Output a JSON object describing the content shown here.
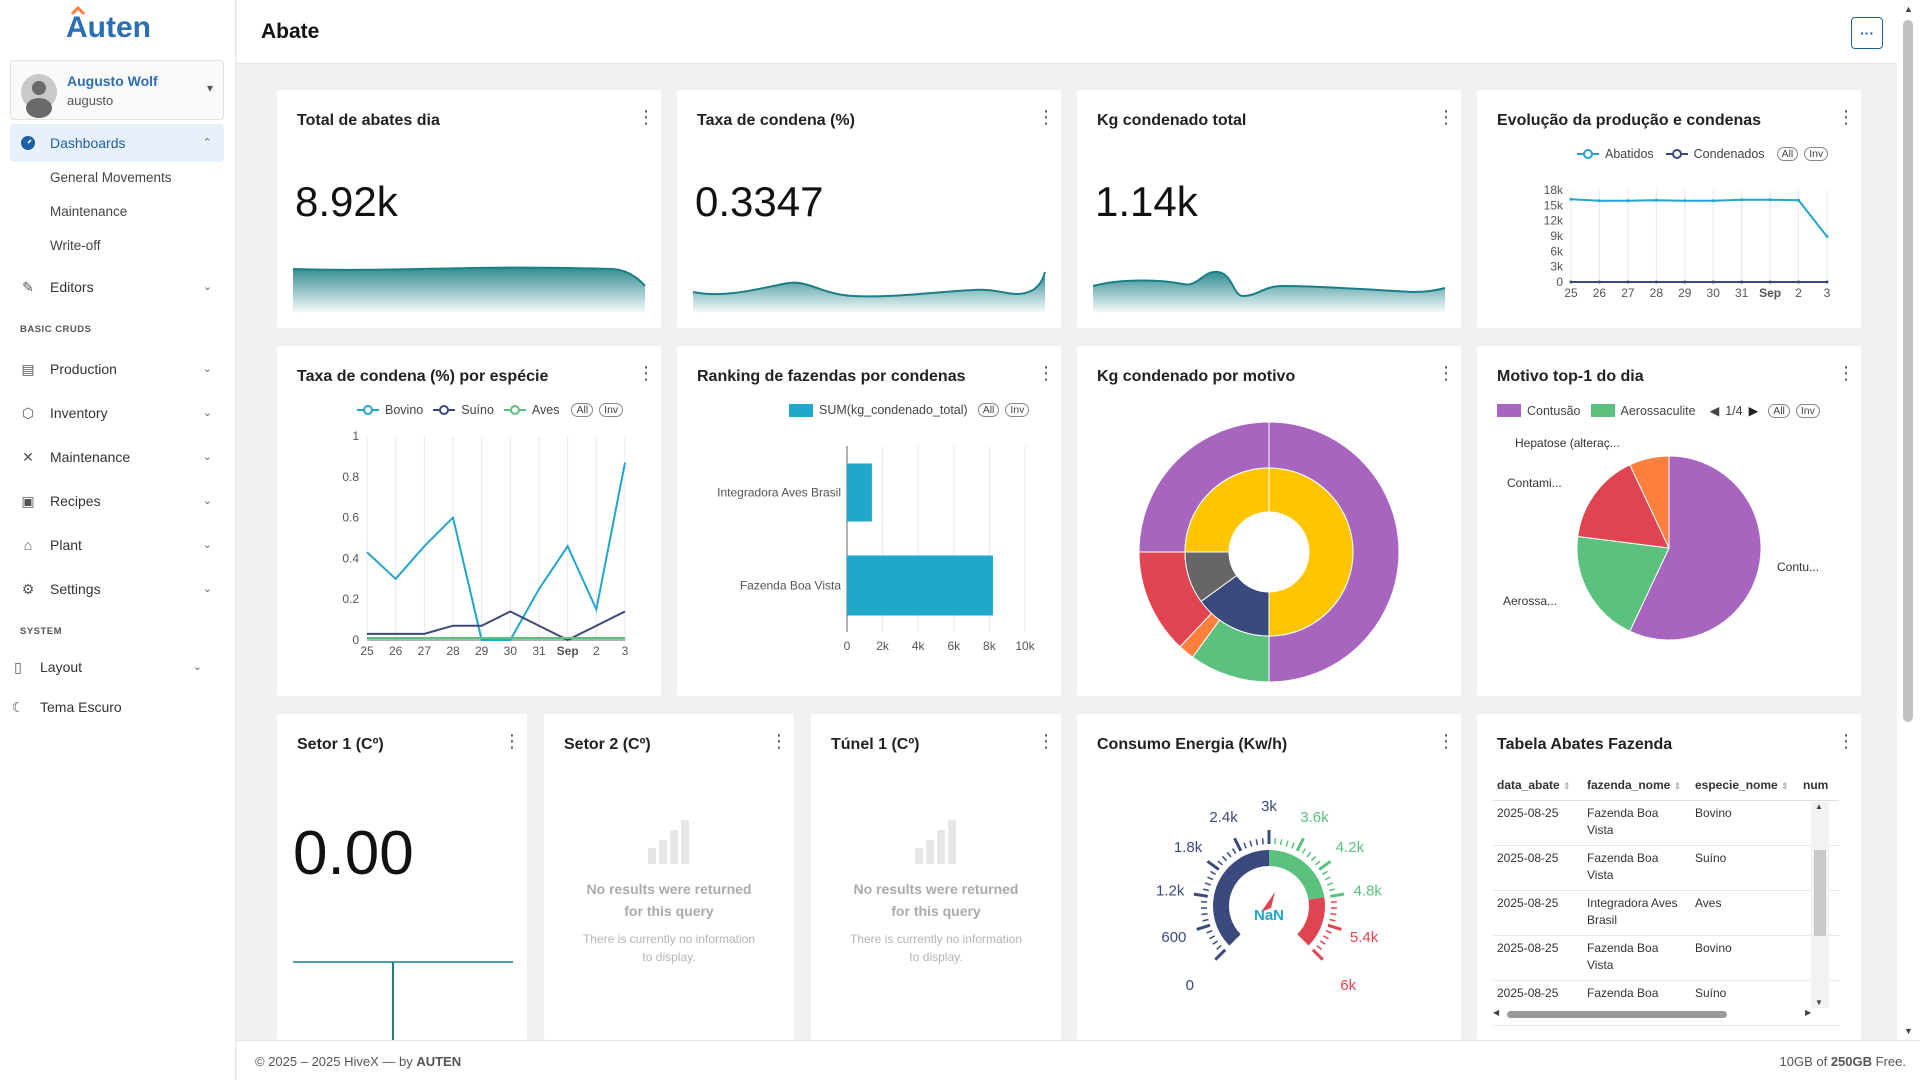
{
  "app": {
    "brand": "Auten"
  },
  "user": {
    "name": "Augusto Wolf",
    "login": "augusto"
  },
  "sidebar": {
    "dashboards": {
      "label": "Dashboards",
      "subitems": [
        "General Movements",
        "Maintenance",
        "Write-off"
      ]
    },
    "editors": "Editors",
    "section_basic": "BASIC CRUDS",
    "production": "Production",
    "inventory": "Inventory",
    "maintenance": "Maintenance",
    "recipes": "Recipes",
    "plant": "Plant",
    "settings": "Settings",
    "section_system": "SYSTEM",
    "layout": "Layout",
    "theme": "Tema Escuro"
  },
  "header": {
    "title": "Abate",
    "menu": "···"
  },
  "colors": {
    "teal": "#1a7f86",
    "blue": "#21a6cc",
    "navy": "#3b4a7c",
    "green": "#5bc17f",
    "purple": "#a865c0",
    "yellow": "#ffc600",
    "red": "#e04451",
    "orange": "#ff7f3f",
    "gray": "#666666"
  },
  "cards": {
    "total_abates": {
      "title": "Total de abates dia",
      "value": "8.92k"
    },
    "taxa_condena": {
      "title": "Taxa de condena (%)",
      "value": "0.3347"
    },
    "kg_condenado": {
      "title": "Kg condenado total",
      "value": "1.14k"
    },
    "evolucao": {
      "title": "Evolução da produção e condenas",
      "legend": [
        "Abatidos",
        "Condenados"
      ],
      "all": "All",
      "inv": "Inv"
    },
    "taxa_especie": {
      "title": "Taxa de condena (%) por espécie",
      "legend": [
        "Bovino",
        "Suíno",
        "Aves"
      ],
      "all": "All",
      "inv": "Inv"
    },
    "ranking": {
      "title": "Ranking de fazendas por condenas",
      "legend": [
        "SUM(kg_condenado_total)"
      ],
      "all": "All",
      "inv": "Inv"
    },
    "motivo": {
      "title": "Kg condenado por motivo"
    },
    "top1": {
      "title": "Motivo top-1 do dia",
      "legend": [
        "Contusão",
        "Aerossaculite"
      ],
      "pager": "1/4",
      "all": "All",
      "inv": "Inv",
      "labels": [
        "Hepatose (alteraç...",
        "Contami...",
        "Contu...",
        "Aerossa..."
      ]
    },
    "setor1": {
      "title": "Setor 1 (Cº)",
      "value": "0.00"
    },
    "setor2": {
      "title": "Setor 2 (Cº)",
      "nores1": "No results were returned",
      "nores2": "for this query",
      "nores3": "There is currently no information",
      "nores4": "to display."
    },
    "tunel1": {
      "title": "Túnel 1 (Cº)",
      "nores1": "No results were returned",
      "nores2": "for this query",
      "nores3": "There is currently no information",
      "nores4": "to display."
    },
    "energia": {
      "title": "Consumo Energia (Kw/h)",
      "center": "NaN",
      "ticks": [
        "0",
        "600",
        "1.2k",
        "1.8k",
        "2.4k",
        "3k",
        "3.6k",
        "4.2k",
        "4.8k",
        "5.4k",
        "6k"
      ]
    },
    "tabela": {
      "title": "Tabela Abates Fazenda",
      "columns": [
        "data_abate",
        "fazenda_nome",
        "especie_nome",
        "num"
      ],
      "rows": [
        [
          "2025-08-25",
          "Fazenda Boa Vista",
          "Bovino"
        ],
        [
          "2025-08-25",
          "Fazenda Boa Vista",
          "Suíno"
        ],
        [
          "2025-08-25",
          "Integradora Aves Brasil",
          "Aves"
        ],
        [
          "2025-08-25",
          "Fazenda Boa Vista",
          "Bovino"
        ],
        [
          "2025-08-25",
          "Fazenda Boa",
          "Suíno"
        ]
      ]
    }
  },
  "chart_data": [
    {
      "type": "line",
      "title": "Evolução da produção e condenas",
      "x": [
        "25",
        "26",
        "27",
        "28",
        "29",
        "30",
        "31",
        "Sep",
        "2",
        "3"
      ],
      "ylim": [
        0,
        18000
      ],
      "yticks": [
        "0",
        "3k",
        "6k",
        "9k",
        "12k",
        "15k",
        "18k"
      ],
      "series": [
        {
          "name": "Abatidos",
          "values": [
            16200,
            15900,
            15900,
            16000,
            15900,
            15900,
            16100,
            16100,
            16000,
            8900
          ]
        },
        {
          "name": "Condenados",
          "values": [
            0,
            0,
            0,
            0,
            0,
            0,
            0,
            0,
            0,
            0
          ]
        }
      ]
    },
    {
      "type": "line",
      "title": "Taxa de condena (%) por espécie",
      "x": [
        "25",
        "26",
        "27",
        "28",
        "29",
        "30",
        "31",
        "Sep",
        "2",
        "3"
      ],
      "ylim": [
        0,
        1
      ],
      "yticks": [
        "0",
        "0.2",
        "0.4",
        "0.6",
        "0.8",
        "1"
      ],
      "series": [
        {
          "name": "Bovino",
          "values": [
            0.43,
            0.3,
            0.46,
            0.6,
            0.0,
            0.0,
            0.25,
            0.46,
            0.15,
            0.87
          ]
        },
        {
          "name": "Suíno",
          "values": [
            0.03,
            0.03,
            0.03,
            0.07,
            0.07,
            0.14,
            0.07,
            0.0,
            0.07,
            0.14
          ]
        },
        {
          "name": "Aves",
          "values": [
            0.01,
            0.01,
            0.01,
            0.01,
            0.01,
            0.01,
            0.01,
            0.01,
            0.01,
            0.01
          ]
        }
      ]
    },
    {
      "type": "bar",
      "title": "Ranking de fazendas por condenas",
      "orientation": "horizontal",
      "categories": [
        "Integradora Aves Brasil",
        "Fazenda Boa Vista"
      ],
      "series": [
        {
          "name": "SUM(kg_condenado_total)",
          "values": [
            1400,
            8200
          ]
        }
      ],
      "xlim": [
        0,
        10000
      ],
      "xticks": [
        "0",
        "2k",
        "4k",
        "6k",
        "8k",
        "10k"
      ]
    },
    {
      "type": "pie",
      "title": "Kg condenado por motivo",
      "variant": "sunburst",
      "outer_shares": [
        0.5,
        0.1,
        0.02,
        0.13,
        0.25
      ],
      "outer_colors": [
        "#a865c0",
        "#5bc17f",
        "#ff7f3f",
        "#e04451",
        "#a865c0"
      ],
      "inner_shares": [
        0.5,
        0.15,
        0.1,
        0.25
      ],
      "inner_colors": [
        "#ffc600",
        "#3b4a7c",
        "#666666",
        "#ffc600"
      ]
    },
    {
      "type": "pie",
      "title": "Motivo top-1 do dia",
      "values": [
        0.57,
        0.2,
        0.16,
        0.07
      ],
      "colors": [
        "#a865c0",
        "#5bc17f",
        "#e04451",
        "#ff7f3f"
      ]
    }
  ]
}
